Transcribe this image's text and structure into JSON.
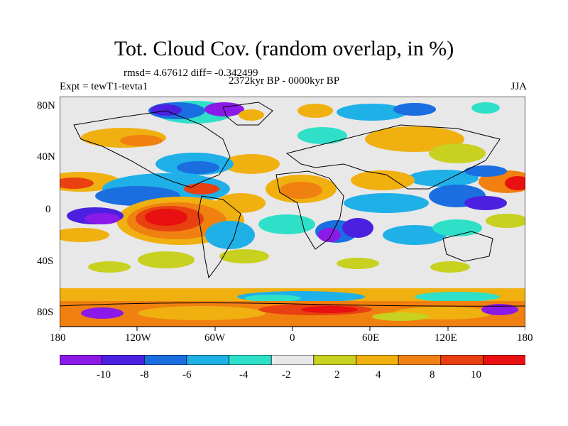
{
  "title": "Tot. Cloud Cov. (random overlap, in %)",
  "stats": "rmsd= 4.67612 diff= -0.342499",
  "period": "2372kyr BP - 0000kyr BP",
  "experiment": "Expt = tewT1-tevta1",
  "season": "JJA",
  "lat_ticks": [
    "80N",
    "40N",
    "0",
    "40S",
    "80S"
  ],
  "lon_ticks": [
    "180",
    "120W",
    "60W",
    "0",
    "60E",
    "120E",
    "180"
  ],
  "colorbar": {
    "labels": [
      "-10",
      "-8",
      "-6",
      "-4",
      "-2",
      "2",
      "4",
      "8",
      "10"
    ],
    "colors": [
      "#8b1ae8",
      "#4b20e0",
      "#1a6ee0",
      "#1fb0e8",
      "#2ee0c8",
      "#e8e8e8",
      "#c8d020",
      "#f0b010",
      "#f08010",
      "#e84010",
      "#e81010"
    ]
  },
  "map_background": "#e8e8e8"
}
